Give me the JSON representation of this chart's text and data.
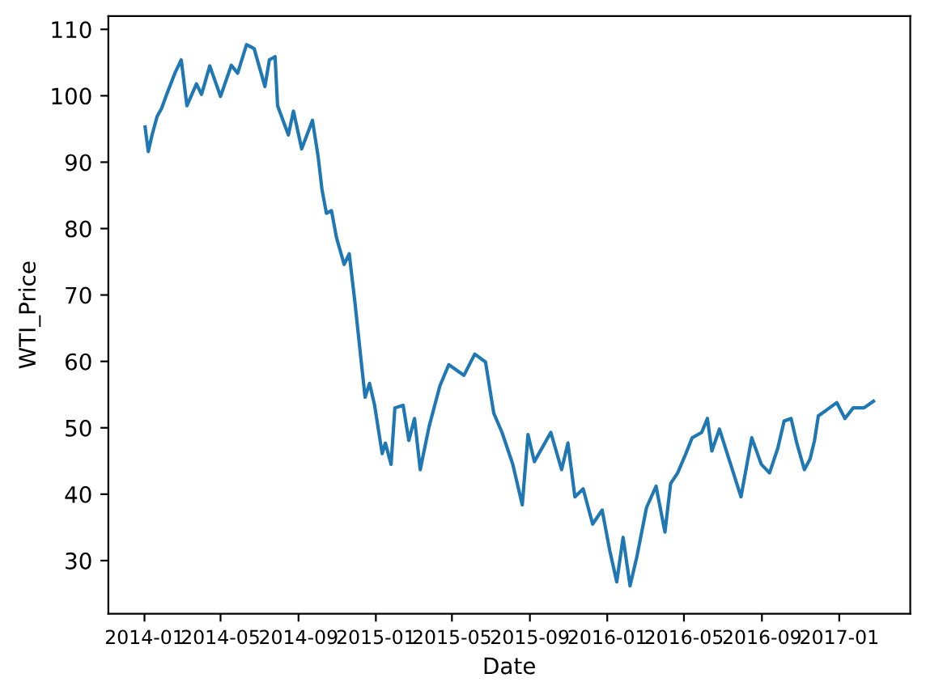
{
  "chart_data": {
    "type": "line",
    "xlabel": "Date",
    "ylabel": "WTI_Price",
    "x": [
      "2014-01-02",
      "2014-01-07",
      "2014-01-13",
      "2014-01-21",
      "2014-01-28",
      "2014-02-05",
      "2014-02-18",
      "2014-02-28",
      "2014-03-09",
      "2014-03-24",
      "2014-04-01",
      "2014-04-14",
      "2014-05-01",
      "2014-05-18",
      "2014-05-28",
      "2014-06-11",
      "2014-06-23",
      "2014-07-10",
      "2014-07-17",
      "2014-07-26",
      "2014-07-30",
      "2014-08-16",
      "2014-08-24",
      "2014-09-06",
      "2014-09-23",
      "2014-10-02",
      "2014-10-08",
      "2014-10-15",
      "2014-10-23",
      "2014-10-31",
      "2014-11-12",
      "2014-11-20",
      "2014-11-29",
      "2014-12-09",
      "2014-12-15",
      "2014-12-22",
      "2014-12-30",
      "2015-01-11",
      "2015-01-16",
      "2015-01-25",
      "2015-01-31",
      "2015-02-13",
      "2015-02-22",
      "2015-03-03",
      "2015-03-12",
      "2015-03-26",
      "2015-04-12",
      "2015-04-26",
      "2015-05-20",
      "2015-06-06",
      "2015-06-23",
      "2015-07-06",
      "2015-07-19",
      "2015-08-05",
      "2015-08-20",
      "2015-08-29",
      "2015-09-08",
      "2015-10-04",
      "2015-10-21",
      "2015-10-31",
      "2015-11-11",
      "2015-11-24",
      "2015-12-09",
      "2015-12-24",
      "2016-01-05",
      "2016-01-16",
      "2016-01-26",
      "2016-02-06",
      "2016-02-17",
      "2016-03-03",
      "2016-03-18",
      "2016-04-01",
      "2016-04-10",
      "2016-04-21",
      "2016-05-04",
      "2016-05-14",
      "2016-05-29",
      "2016-06-07",
      "2016-06-14",
      "2016-06-26",
      "2016-07-11",
      "2016-07-30",
      "2016-08-16",
      "2016-08-31",
      "2016-09-13",
      "2016-09-26",
      "2016-10-06",
      "2016-10-17",
      "2016-10-26",
      "2016-11-07",
      "2016-11-16",
      "2016-11-23",
      "2016-11-29",
      "2016-12-11",
      "2016-12-28",
      "2017-01-10",
      "2017-01-23",
      "2017-02-09",
      "2017-02-24"
    ],
    "series": [
      {
        "color": "#1f77b4",
        "values": [
          95.3,
          91.6,
          94.1,
          96.9,
          98.1,
          100.2,
          103.4,
          105.4,
          98.5,
          101.8,
          100.2,
          104.5,
          99.9,
          104.6,
          103.4,
          107.7,
          107.1,
          101.4,
          105.4,
          105.9,
          98.5,
          94.1,
          97.7,
          92.0,
          96.3,
          90.8,
          85.9,
          82.3,
          82.7,
          78.6,
          74.6,
          76.2,
          68.9,
          59.9,
          54.6,
          56.7,
          53.4,
          46.1,
          47.7,
          44.5,
          53.0,
          53.4,
          48.1,
          51.4,
          43.7,
          50.2,
          56.3,
          59.5,
          57.9,
          61.1,
          59.9,
          52.2,
          49.3,
          44.5,
          38.4,
          49.0,
          44.9,
          49.3,
          43.7,
          47.7,
          39.6,
          40.8,
          35.5,
          37.6,
          31.5,
          26.8,
          33.5,
          26.2,
          30.7,
          38.0,
          41.2,
          34.3,
          41.6,
          43.2,
          46.1,
          48.5,
          49.3,
          51.4,
          46.5,
          49.8,
          45.3,
          39.6,
          48.5,
          44.5,
          43.2,
          46.9,
          51.0,
          51.4,
          47.7,
          43.7,
          45.3,
          48.1,
          51.8,
          52.6,
          53.8,
          51.4,
          53.0,
          53.0,
          54.0
        ]
      }
    ],
    "xlim": [
      "2013-11-05",
      "2017-04-23"
    ],
    "ylim": [
      22,
      112
    ],
    "xticks": [
      {
        "value": "2014-01-01",
        "label": "2014-01"
      },
      {
        "value": "2014-05-01",
        "label": "2014-05"
      },
      {
        "value": "2014-09-01",
        "label": "2014-09"
      },
      {
        "value": "2015-01-01",
        "label": "2015-01"
      },
      {
        "value": "2015-05-01",
        "label": "2015-05"
      },
      {
        "value": "2015-09-01",
        "label": "2015-09"
      },
      {
        "value": "2016-01-01",
        "label": "2016-01"
      },
      {
        "value": "2016-05-01",
        "label": "2016-05"
      },
      {
        "value": "2016-09-01",
        "label": "2016-09"
      },
      {
        "value": "2017-01-01",
        "label": "2017-01"
      }
    ],
    "yticks": [
      30,
      40,
      50,
      60,
      70,
      80,
      90,
      100,
      110
    ]
  }
}
